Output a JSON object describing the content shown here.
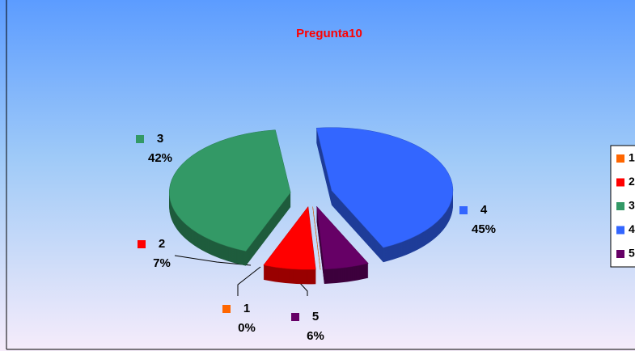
{
  "chart_data": {
    "type": "pie",
    "title": "Pregunta10",
    "categories": [
      "1",
      "2",
      "3",
      "4",
      "5"
    ],
    "values": [
      0,
      7,
      42,
      45,
      6
    ],
    "value_labels": [
      "0%",
      "7%",
      "42%",
      "45%",
      "6%"
    ],
    "colors": [
      "#ff6600",
      "#ff0000",
      "#339966",
      "#3366ff",
      "#660066"
    ],
    "legend": "right"
  }
}
